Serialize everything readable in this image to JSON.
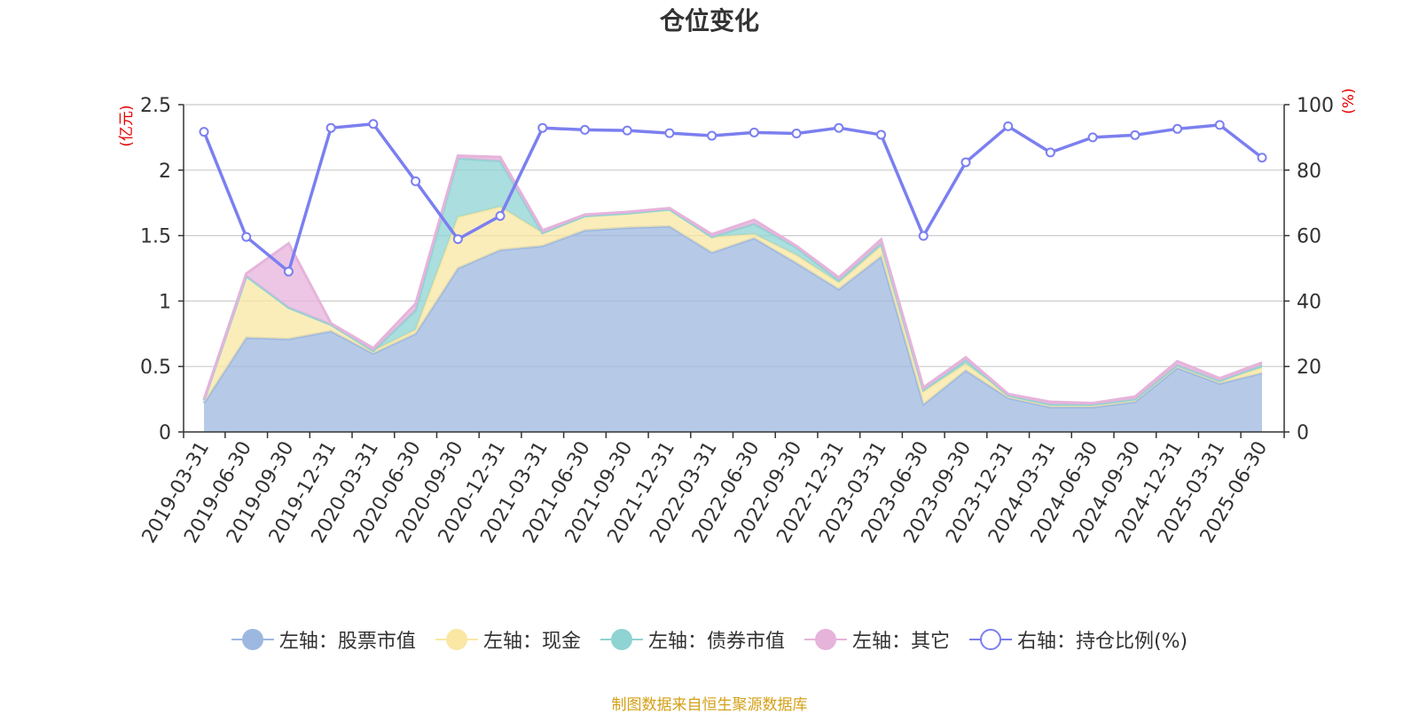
{
  "chart_data": {
    "type": "area",
    "title": "仓位变化",
    "x": [
      "2019-03-31",
      "2019-06-30",
      "2019-09-30",
      "2019-12-31",
      "2020-03-31",
      "2020-06-30",
      "2020-09-30",
      "2020-12-31",
      "2021-03-31",
      "2021-06-30",
      "2021-09-30",
      "2021-12-31",
      "2022-03-31",
      "2022-06-30",
      "2022-09-30",
      "2022-12-31",
      "2023-03-31",
      "2023-06-30",
      "2023-09-30",
      "2023-12-31",
      "2024-03-31",
      "2024-06-30",
      "2024-09-30",
      "2024-12-31",
      "2025-03-31",
      "2025-06-30"
    ],
    "left_axis": {
      "unit_label": "(亿元)",
      "ylim": [
        0,
        2.5
      ],
      "ticks": [
        "0",
        "0.5",
        "1",
        "1.5",
        "2",
        "2.5"
      ],
      "tick_values": [
        0,
        0.5,
        1,
        1.5,
        2,
        2.5
      ]
    },
    "right_axis": {
      "unit_label": "(%)",
      "ylim": [
        0,
        100
      ],
      "ticks": [
        "0",
        "20",
        "40",
        "60",
        "80",
        "100"
      ],
      "tick_values": [
        0,
        20,
        40,
        60,
        80,
        100
      ]
    },
    "grid": true,
    "legend_position": "bottom",
    "series": [
      {
        "name": "左轴：股票市值",
        "axis": "left",
        "stacked": true,
        "color": "#9db8e0",
        "values": [
          0.22,
          0.72,
          0.71,
          0.77,
          0.6,
          0.75,
          1.25,
          1.39,
          1.42,
          1.54,
          1.56,
          1.57,
          1.37,
          1.48,
          1.29,
          1.09,
          1.34,
          0.21,
          0.47,
          0.26,
          0.19,
          0.19,
          0.23,
          0.49,
          0.37,
          0.45
        ]
      },
      {
        "name": "左轴：现金",
        "axis": "left",
        "stacked": true,
        "color": "#f9e7a3",
        "values": [
          0.02,
          0.47,
          0.24,
          0.05,
          0.02,
          0.03,
          0.39,
          0.33,
          0.1,
          0.11,
          0.11,
          0.13,
          0.12,
          0.03,
          0.06,
          0.05,
          0.08,
          0.1,
          0.05,
          0.02,
          0.02,
          0.02,
          0.02,
          0.02,
          0.02,
          0.04
        ]
      },
      {
        "name": "左轴：债券市值",
        "axis": "left",
        "stacked": true,
        "color": "#8fd3d3",
        "values": [
          0,
          0,
          0,
          0,
          0,
          0.15,
          0.45,
          0.35,
          0,
          0,
          0,
          0,
          0,
          0.08,
          0.06,
          0.02,
          0.02,
          0.01,
          0.03,
          0,
          0,
          0,
          0,
          0,
          0,
          0.02
        ]
      },
      {
        "name": "左轴：其它",
        "axis": "left",
        "stacked": true,
        "color": "#e6b3db",
        "values": [
          0.01,
          0.02,
          0.49,
          0.01,
          0.02,
          0.05,
          0.02,
          0.03,
          0.02,
          0.01,
          0.01,
          0.01,
          0.02,
          0.03,
          0.01,
          0.02,
          0.03,
          0.02,
          0.02,
          0.01,
          0.02,
          0.01,
          0.02,
          0.03,
          0.02,
          0.02
        ]
      },
      {
        "name": "右轴：持仓比例(%)",
        "axis": "right",
        "type": "line",
        "color": "#7b7ff0",
        "values": [
          91.7,
          59.6,
          49.0,
          92.9,
          94.1,
          76.6,
          58.9,
          66.0,
          92.9,
          92.3,
          92.1,
          91.3,
          90.5,
          91.5,
          91.2,
          92.9,
          90.8,
          59.9,
          82.4,
          93.4,
          85.4,
          90.0,
          90.7,
          92.6,
          93.8,
          83.8
        ]
      }
    ]
  },
  "footer": {
    "source": "制图数据来自恒生聚源数据库"
  }
}
